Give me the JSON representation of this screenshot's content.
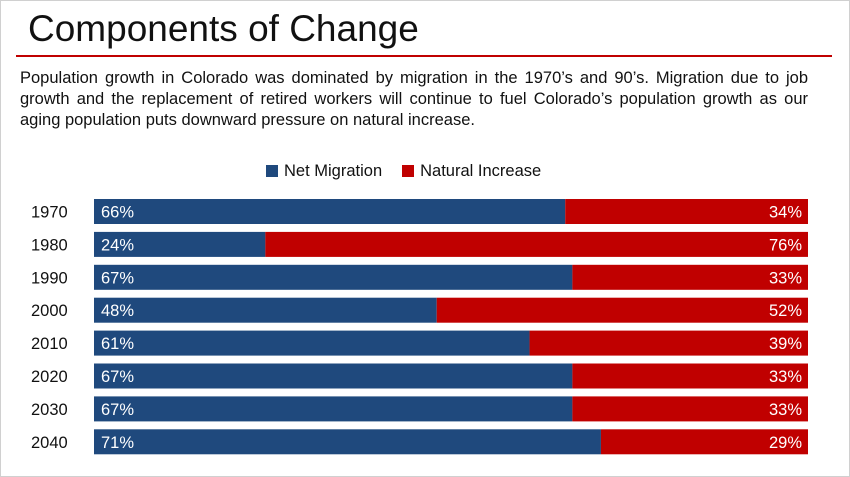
{
  "header": {
    "title": "Components of Change",
    "description": "Population growth in Colorado was dominated by migration in the 1970’s and 90’s. Migration due to job growth and the replacement of retired workers will continue to fuel Colorado’s population growth as our aging population puts downward pressure on natural increase."
  },
  "colors": {
    "net_migration": "#1f497d",
    "natural_increase": "#c00000",
    "accent_rule": "#c00000"
  },
  "chart_data": {
    "type": "bar",
    "orientation": "horizontal",
    "stacked": "percent",
    "legend_position": "top",
    "grid": false,
    "xlim": [
      0,
      100
    ],
    "categories": [
      "1970",
      "1980",
      "1990",
      "2000",
      "2010",
      "2020",
      "2030",
      "2040"
    ],
    "series": [
      {
        "name": "Net Migration",
        "values": [
          66,
          24,
          67,
          48,
          61,
          67,
          67,
          71
        ],
        "labels": [
          "66%",
          "24%",
          "67%",
          "48%",
          "61%",
          "67%",
          "67%",
          "71%"
        ]
      },
      {
        "name": "Natural Increase",
        "values": [
          34,
          76,
          33,
          52,
          39,
          33,
          33,
          29
        ],
        "labels": [
          "34%",
          "76%",
          "33%",
          "52%",
          "39%",
          "33%",
          "33%",
          "29%"
        ]
      }
    ]
  }
}
